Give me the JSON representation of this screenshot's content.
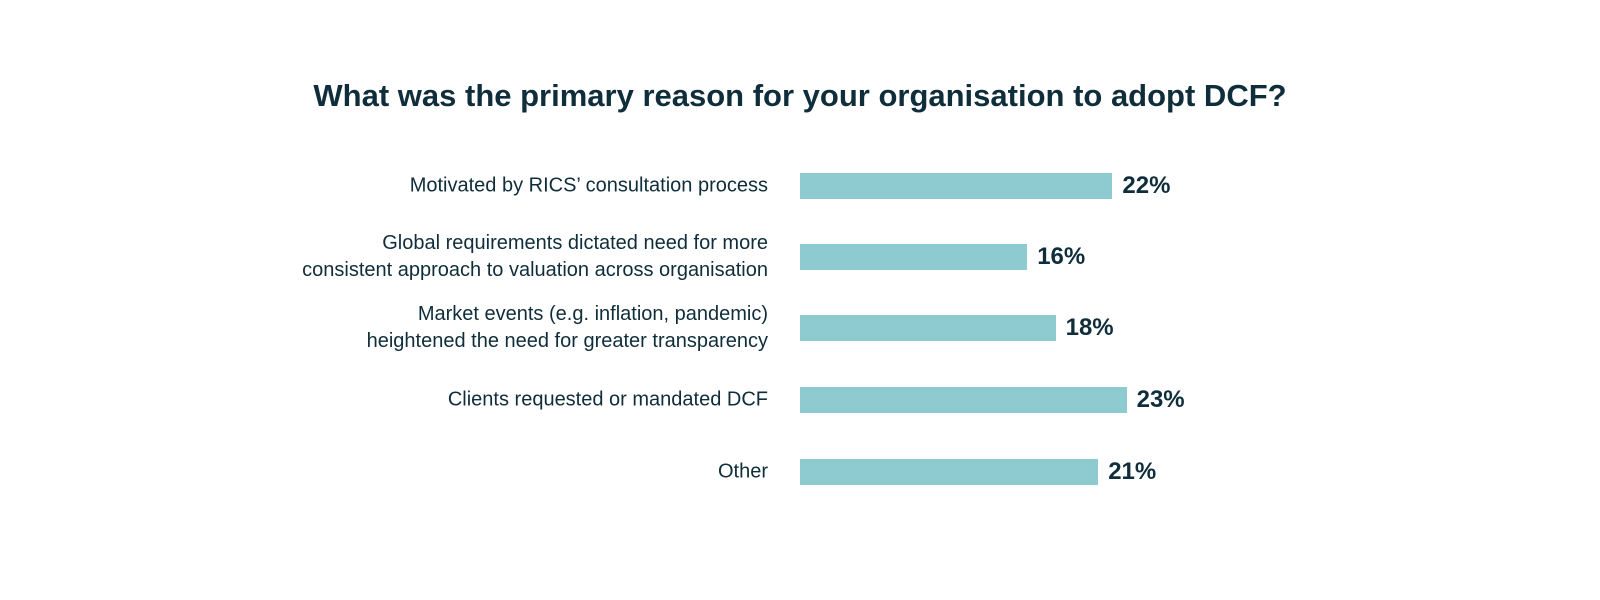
{
  "chart_data": {
    "type": "bar",
    "title": "What was the primary reason for your organisation to adopt DCF?",
    "categories": [
      "Motivated by RICS’ consultation process",
      "Global requirements dictated need for more\nconsistent approach to valuation across organisation",
      "Market events (e.g. inflation, pandemic)\nheightened the need for greater transparency",
      "Clients requested or mandated DCF",
      "Other"
    ],
    "values": [
      22,
      16,
      18,
      23,
      21
    ],
    "value_labels": [
      "22%",
      "16%",
      "18%",
      "23%",
      "21%"
    ],
    "color": "#8ecbd1"
  }
}
